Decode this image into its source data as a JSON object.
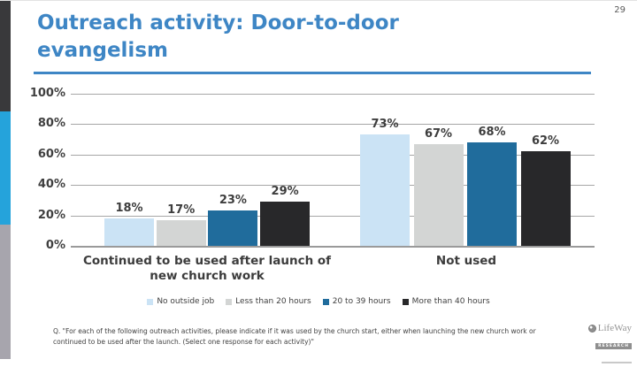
{
  "page": {
    "number": "29"
  },
  "header": {
    "title": "Outreach activity: Door-to-door evangelism"
  },
  "chart_data": {
    "type": "bar",
    "categories": [
      "Continued to be used after launch of new church work",
      "Not used"
    ],
    "series": [
      {
        "name": "No outside job",
        "color": "#cbe3f5",
        "values": [
          18,
          73
        ]
      },
      {
        "name": "Less than 20 hours",
        "color": "#d3d5d4",
        "values": [
          17,
          67
        ]
      },
      {
        "name": "20 to 39 hours",
        "color": "#206c9c",
        "values": [
          23,
          68
        ]
      },
      {
        "name": "More than 40 hours",
        "color": "#28282a",
        "values": [
          29,
          62
        ]
      }
    ],
    "ylim": [
      0,
      100
    ],
    "yticks": [
      "100%",
      "80%",
      "60%",
      "40%",
      "20%",
      "0%"
    ],
    "grid": true,
    "legend_position": "bottom",
    "value_suffix": "%",
    "title": "",
    "xlabel": "",
    "ylabel": ""
  },
  "footer": {
    "question": "Q. \"For each of the following outreach activities, please indicate if it was used by the church start, either when launching the new church work or continued to be used after the launch. (Select one response for each activity)\""
  },
  "logo": {
    "brand": "LifeWay",
    "sub": "RESEARCH"
  },
  "colors": {
    "accent_blue": "#3e86c5",
    "strip_dark": "#39393b",
    "strip_blue": "#25a3db",
    "strip_gray": "#a7a5ad",
    "gridline": "#a6a6a6"
  }
}
